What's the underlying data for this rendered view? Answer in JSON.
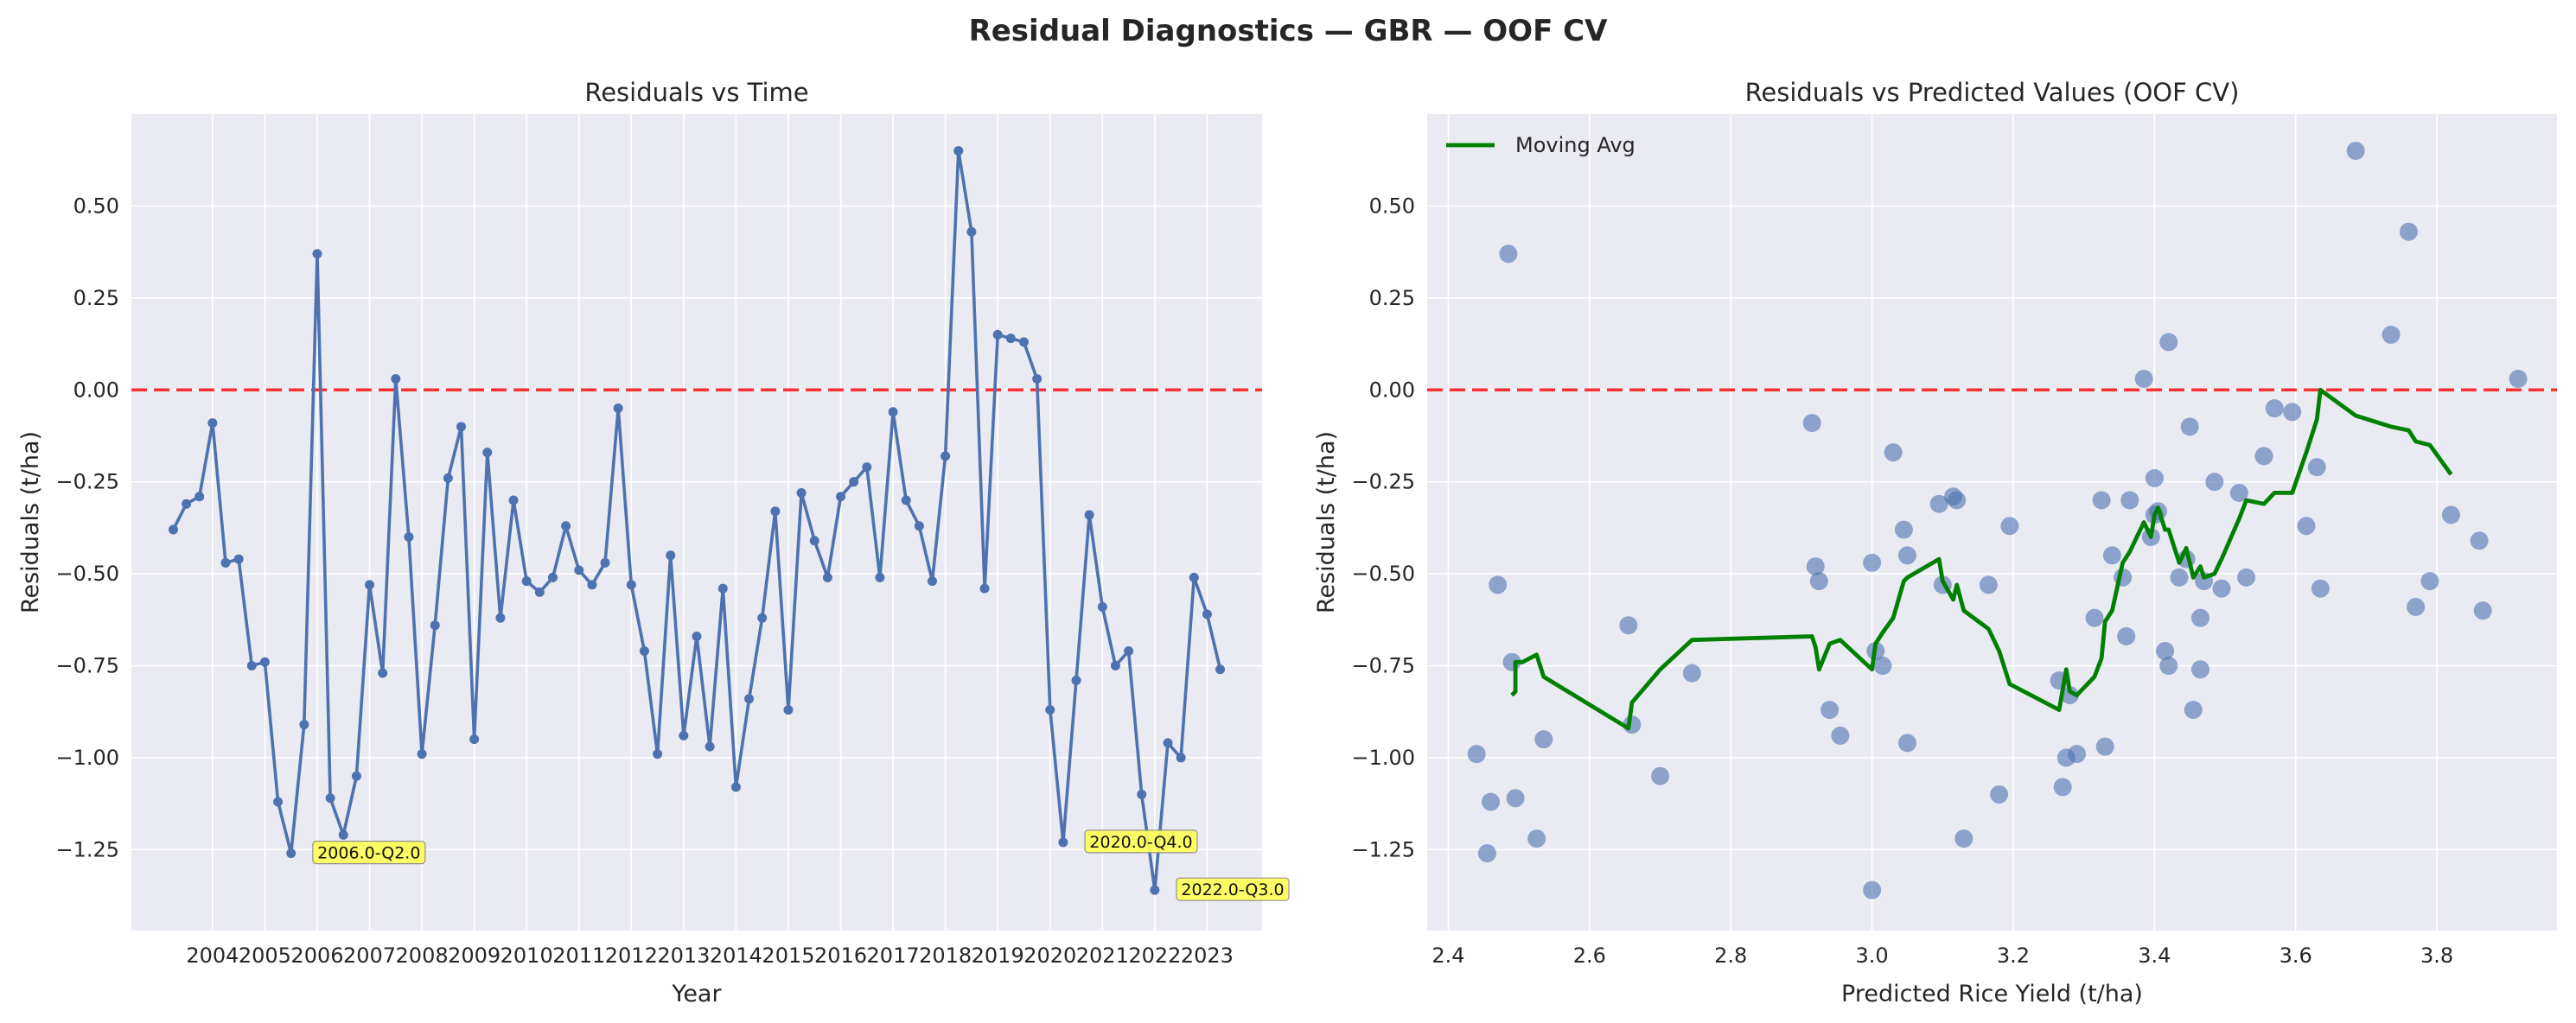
{
  "figure": {
    "suptitle": "Residual Diagnostics — GBR — OOF CV"
  },
  "colors": {
    "background": "#ffffff",
    "axes_face": "#eaeaf2",
    "grid": "#ffffff",
    "residual_line": "#4c72b0",
    "scatter": "#4c72b0",
    "moving_avg": "#008000",
    "zero_line": "#ff0000",
    "annotation_fill": "#ffff55"
  },
  "chart_data": [
    {
      "type": "line",
      "title": "Residuals vs Time",
      "xlabel": "Year",
      "ylabel": "Residuals (t/ha)",
      "grid": true,
      "xlim": [
        2002.45,
        2024.05
      ],
      "ylim": [
        -1.47,
        0.75
      ],
      "x_ticks": [
        2004,
        2005,
        2006,
        2007,
        2008,
        2009,
        2010,
        2011,
        2012,
        2013,
        2014,
        2015,
        2016,
        2017,
        2018,
        2019,
        2020,
        2021,
        2022,
        2023
      ],
      "y_ticks": [
        0.5,
        0.25,
        0.0,
        -0.25,
        -0.5,
        -0.75,
        -1.0,
        -1.25
      ],
      "y_tick_labels": [
        "0.50",
        "0.25",
        "0.00",
        "−0.25",
        "−0.50",
        "−0.75",
        "−1.00",
        "−1.25"
      ],
      "reference_line": {
        "y": 0.0,
        "style": "dashed"
      },
      "series": [
        {
          "x": [
            2003.25,
            2003.5,
            2003.75,
            2004.0,
            2004.25,
            2004.5,
            2004.75,
            2005.0,
            2005.25,
            2005.5,
            2005.75,
            2006.0,
            2006.25,
            2006.5,
            2006.75,
            2007.0,
            2007.25,
            2007.5,
            2007.75,
            2008.0,
            2008.25,
            2008.5,
            2008.75,
            2009.0,
            2009.25,
            2009.5,
            2009.75,
            2010.0,
            2010.25,
            2010.5,
            2010.75,
            2011.0,
            2011.25,
            2011.5,
            2011.75,
            2012.0,
            2012.25,
            2012.5,
            2012.75,
            2013.0,
            2013.25,
            2013.5,
            2013.75,
            2014.0,
            2014.25,
            2014.5,
            2014.75,
            2015.0,
            2015.25,
            2015.5,
            2015.75,
            2016.0,
            2016.25,
            2016.5,
            2016.75,
            2017.0,
            2017.25,
            2017.5,
            2017.75,
            2018.0,
            2018.25,
            2018.5,
            2018.75,
            2019.0,
            2019.25,
            2019.5,
            2019.75,
            2020.0,
            2020.25,
            2020.5,
            2020.75,
            2021.0,
            2021.25,
            2021.5,
            2021.75,
            2022.0,
            2022.25,
            2022.5,
            2022.75,
            2023.0,
            2023.25
          ],
          "values": [
            -0.38,
            -0.31,
            -0.29,
            -0.09,
            -0.47,
            -0.46,
            -0.75,
            -0.74,
            -1.12,
            -1.26,
            -0.91,
            0.37,
            -1.11,
            -1.21,
            -1.05,
            -0.53,
            -0.77,
            0.03,
            -0.4,
            -0.99,
            -0.64,
            -0.24,
            -0.1,
            -0.95,
            -0.17,
            -0.62,
            -0.3,
            -0.52,
            -0.55,
            -0.51,
            -0.37,
            -0.49,
            -0.53,
            -0.47,
            -0.05,
            -0.53,
            -0.71,
            -0.99,
            -0.45,
            -0.94,
            -0.67,
            -0.97,
            -0.54,
            -1.08,
            -0.84,
            -0.62,
            -0.33,
            -0.87,
            -0.28,
            -0.41,
            -0.51,
            -0.29,
            -0.25,
            -0.21,
            -0.51,
            -0.06,
            -0.3,
            -0.37,
            -0.52,
            -0.18,
            0.65,
            0.43,
            -0.54,
            0.15,
            0.14,
            0.13,
            0.03,
            -0.87,
            -1.23,
            -0.79,
            -0.34,
            -0.59,
            -0.75,
            -0.71,
            -1.1,
            -1.36,
            -0.96,
            -1.0,
            -0.51,
            -0.61,
            -0.76
          ]
        }
      ],
      "annotations": [
        {
          "text": "2006.0-Q2.0",
          "x": 2005.75,
          "y": -1.26
        },
        {
          "text": "2020.0-Q4.0",
          "x": 2020.5,
          "y": -1.23
        },
        {
          "text": "2022.0-Q3.0",
          "x": 2022.25,
          "y": -1.36
        }
      ]
    },
    {
      "type": "scatter",
      "title": "Residuals vs Predicted Values (OOF CV)",
      "xlabel": "Predicted Rice Yield (t/ha)",
      "ylabel": "Residuals (t/ha)",
      "grid": true,
      "xlim": [
        2.37,
        3.97
      ],
      "ylim": [
        -1.47,
        0.75
      ],
      "x_ticks": [
        2.4,
        2.6,
        2.8,
        3.0,
        3.2,
        3.4,
        3.6,
        3.8
      ],
      "x_tick_labels": [
        "2.4",
        "2.6",
        "2.8",
        "3.0",
        "3.2",
        "3.4",
        "3.6",
        "3.8"
      ],
      "y_ticks": [
        0.5,
        0.25,
        0.0,
        -0.25,
        -0.5,
        -0.75,
        -1.0,
        -1.25
      ],
      "y_tick_labels": [
        "0.50",
        "0.25",
        "0.00",
        "−0.25",
        "−0.50",
        "−0.75",
        "−1.00",
        "−1.25"
      ],
      "reference_line": {
        "y": 0.0,
        "style": "dashed"
      },
      "legend": {
        "placement": "top-left",
        "entries": [
          "Moving Avg"
        ]
      },
      "points": {
        "x": [
          2.44,
          2.455,
          2.46,
          2.47,
          2.485,
          2.49,
          2.495,
          2.525,
          2.535,
          2.655,
          2.66,
          2.7,
          2.745,
          2.915,
          2.92,
          2.925,
          2.94,
          2.955,
          3.0,
          3.0,
          3.005,
          3.015,
          3.03,
          3.045,
          3.05,
          3.05,
          3.095,
          3.1,
          3.115,
          3.12,
          3.13,
          3.165,
          3.18,
          3.195,
          3.265,
          3.27,
          3.275,
          3.28,
          3.29,
          3.315,
          3.325,
          3.33,
          3.34,
          3.355,
          3.36,
          3.365,
          3.385,
          3.395,
          3.4,
          3.4,
          3.405,
          3.415,
          3.42,
          3.42,
          3.435,
          3.445,
          3.45,
          3.455,
          3.465,
          3.465,
          3.47,
          3.485,
          3.495,
          3.52,
          3.53,
          3.555,
          3.57,
          3.595,
          3.615,
          3.63,
          3.635,
          3.685,
          3.735,
          3.76,
          3.77,
          3.79,
          3.82,
          3.86,
          3.865,
          3.915
        ],
        "y": [
          -0.99,
          -1.26,
          -1.12,
          -0.53,
          0.37,
          -0.74,
          -1.11,
          -1.22,
          -0.95,
          -0.64,
          -0.91,
          -1.05,
          -0.77,
          -0.09,
          -0.48,
          -0.52,
          -0.87,
          -0.94,
          -0.47,
          -1.36,
          -0.71,
          -0.75,
          -0.17,
          -0.38,
          -0.45,
          -0.96,
          -0.31,
          -0.53,
          -0.29,
          -0.3,
          -1.22,
          -0.53,
          -1.1,
          -0.37,
          -0.79,
          -1.08,
          -1.0,
          -0.83,
          -0.99,
          -0.62,
          -0.3,
          -0.97,
          -0.45,
          -0.51,
          -0.67,
          -0.3,
          0.03,
          -0.4,
          -0.24,
          -0.34,
          -0.33,
          -0.71,
          -0.75,
          0.13,
          -0.51,
          -0.46,
          -0.1,
          -0.87,
          -0.76,
          -0.62,
          -0.52,
          -0.25,
          -0.54,
          -0.28,
          -0.51,
          -0.18,
          -0.05,
          -0.06,
          -0.37,
          -0.21,
          -0.54,
          0.65,
          0.15,
          0.43,
          -0.59,
          -0.52,
          -0.34,
          -0.41,
          -0.6,
          0.03
        ]
      },
      "series": [
        {
          "name": "Moving Avg",
          "x": [
            2.49,
            2.495,
            2.495,
            2.505,
            2.525,
            2.535,
            2.655,
            2.66,
            2.7,
            2.745,
            2.915,
            2.92,
            2.925,
            2.94,
            2.955,
            3.0,
            3.005,
            3.015,
            3.03,
            3.045,
            3.05,
            3.095,
            3.1,
            3.115,
            3.12,
            3.13,
            3.165,
            3.18,
            3.195,
            3.265,
            3.275,
            3.28,
            3.29,
            3.315,
            3.325,
            3.33,
            3.34,
            3.355,
            3.365,
            3.385,
            3.395,
            3.4,
            3.405,
            3.415,
            3.42,
            3.435,
            3.445,
            3.455,
            3.465,
            3.47,
            3.485,
            3.495,
            3.52,
            3.53,
            3.555,
            3.57,
            3.595,
            3.615,
            3.63,
            3.635,
            3.685,
            3.735,
            3.76,
            3.77,
            3.79,
            3.82
          ],
          "values": [
            -0.83,
            -0.82,
            -0.74,
            -0.74,
            -0.72,
            -0.78,
            -0.92,
            -0.85,
            -0.76,
            -0.68,
            -0.67,
            -0.7,
            -0.76,
            -0.69,
            -0.68,
            -0.76,
            -0.69,
            -0.66,
            -0.62,
            -0.52,
            -0.51,
            -0.46,
            -0.52,
            -0.57,
            -0.53,
            -0.6,
            -0.65,
            -0.71,
            -0.8,
            -0.87,
            -0.76,
            -0.82,
            -0.83,
            -0.78,
            -0.73,
            -0.63,
            -0.6,
            -0.47,
            -0.44,
            -0.36,
            -0.4,
            -0.34,
            -0.32,
            -0.38,
            -0.38,
            -0.47,
            -0.43,
            -0.51,
            -0.48,
            -0.51,
            -0.5,
            -0.46,
            -0.35,
            -0.3,
            -0.31,
            -0.28,
            -0.28,
            -0.17,
            -0.08,
            0.0,
            -0.07,
            -0.1,
            -0.11,
            -0.14,
            -0.15,
            -0.23
          ]
        }
      ]
    }
  ]
}
